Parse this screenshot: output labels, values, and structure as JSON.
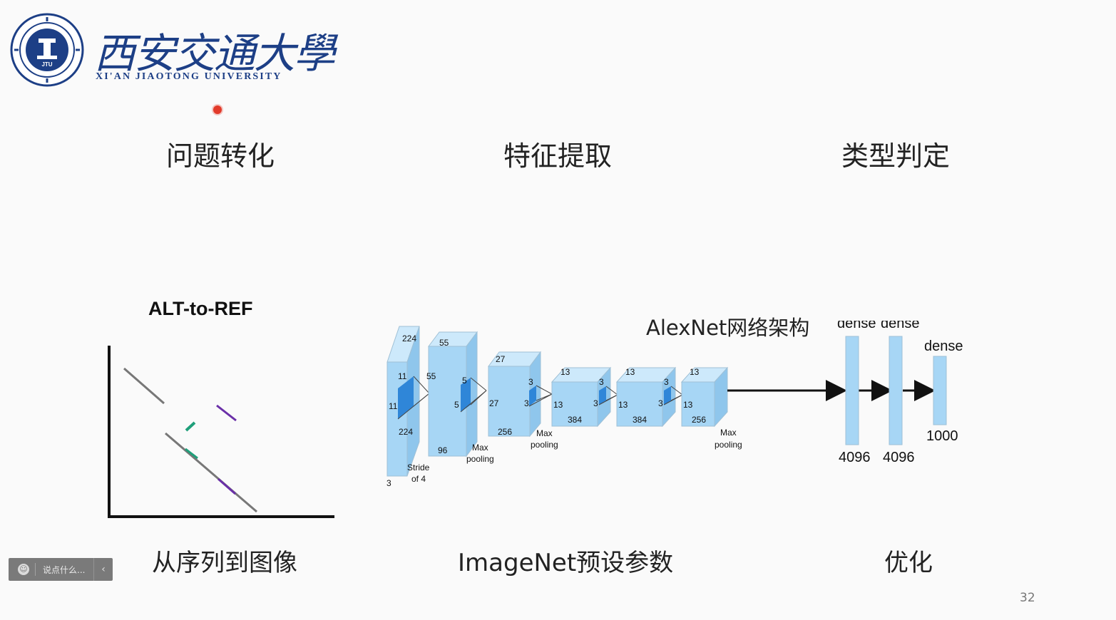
{
  "logo": {
    "chinese_name": "西安交通大學",
    "english_name": "XI'AN JIAOTONG UNIVERSITY",
    "seal_text": "JTU",
    "brand_color": "#1d3f86"
  },
  "headings": {
    "col1": "问题转化",
    "col2": "特征提取",
    "col3": "类型判定"
  },
  "captions": {
    "col1": "从序列到图像",
    "col2": "ImageNet预设参数",
    "col3": "优化"
  },
  "alt_plot": {
    "title": "ALT-to-REF",
    "colors": {
      "axis": "#111111",
      "gray": "#777777",
      "purple": "#6a2fa8",
      "teal": "#1f9f7a"
    }
  },
  "alexnet": {
    "title": "AlexNet网络架构",
    "box_color": "#a7d6f5",
    "kernel_color": "#2f86d8",
    "input": {
      "h": "224",
      "w": "224",
      "depth": "3",
      "kernel_a": "11",
      "kernel_b": "11",
      "stride": "Stride",
      "stride_of": "of 4"
    },
    "conv1": {
      "h": "55",
      "w": "55",
      "depth": "96",
      "k_a": "5",
      "k_b": "5"
    },
    "conv2": {
      "h": "27",
      "w": "27",
      "depth": "256",
      "k_a": "3",
      "k_b": "3"
    },
    "conv3": {
      "h": "13",
      "w": "13",
      "depth": "384",
      "k_a": "3",
      "k_b": "3"
    },
    "conv4": {
      "h": "13",
      "w": "13",
      "depth": "384",
      "k_a": "3",
      "k_b": "3"
    },
    "conv5": {
      "h": "13",
      "w": "13",
      "depth": "256"
    },
    "pool_word_1": "Max",
    "pool_word_2": "pooling",
    "dense": [
      {
        "label": "dense",
        "size": "4096"
      },
      {
        "label": "dense",
        "size": "4096"
      },
      {
        "label": "dense",
        "size": "1000"
      }
    ]
  },
  "comment_bar": {
    "placeholder": "说点什么...",
    "icon": "smile-icon"
  },
  "page_number": "32"
}
